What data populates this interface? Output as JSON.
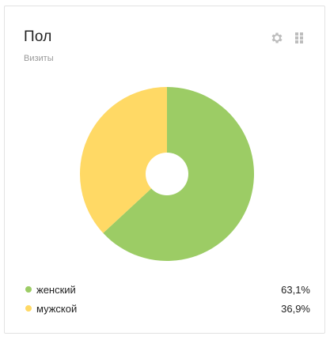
{
  "widget": {
    "title": "Пол",
    "subtitle": "Визиты",
    "icons": [
      "gear-icon",
      "drag-handle-icon"
    ]
  },
  "colors": {
    "female": "#9ccc65",
    "male": "#ffd965",
    "icon": "#bdbdbd"
  },
  "legend": [
    {
      "label": "женский",
      "value": "63,1%"
    },
    {
      "label": "мужской",
      "value": "36,9%"
    }
  ],
  "chart_data": {
    "type": "pie",
    "categories": [
      "женский",
      "мужской"
    ],
    "values": [
      63.1,
      36.9
    ],
    "colors": [
      "#9ccc65",
      "#ffd965"
    ],
    "donut": true
  }
}
